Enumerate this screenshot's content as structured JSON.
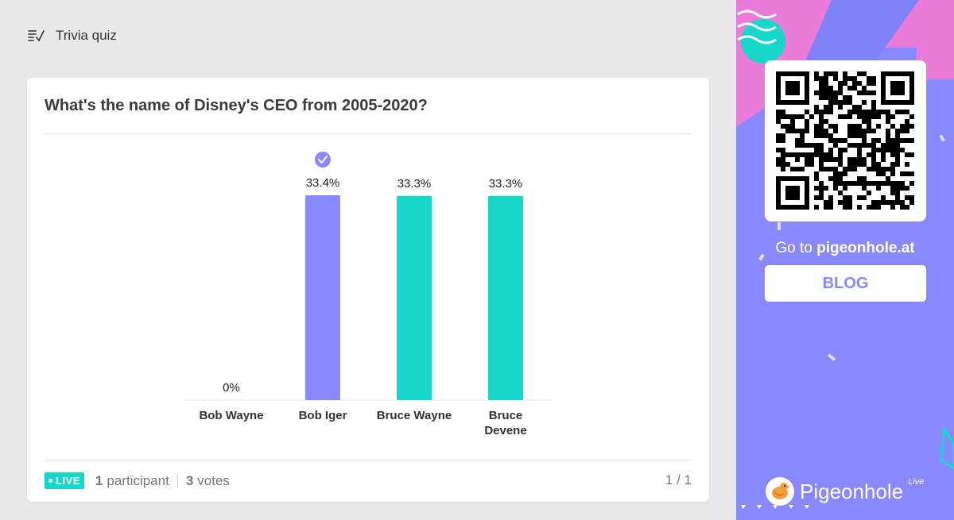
{
  "header": {
    "title": "Trivia quiz",
    "icon": "quiz-list-icon"
  },
  "question": {
    "text": "What's the name of Disney's CEO from 2005-2020?"
  },
  "chart_data": {
    "type": "bar",
    "categories": [
      "Bob Wayne",
      "Bob Iger",
      "Bruce Wayne",
      "Bruce\nDevene"
    ],
    "values": [
      0,
      33.4,
      33.3,
      33.3
    ],
    "labels": [
      "0%",
      "33.4%",
      "33.3%",
      "33.3%"
    ],
    "correct_index": 1,
    "colors": [
      "#17d7c9",
      "#8a88ff",
      "#17d7c9",
      "#17d7c9"
    ],
    "ylim": [
      0,
      33.4
    ]
  },
  "footer": {
    "live": "LIVE",
    "participants_count": "1",
    "participants_label": "participant",
    "votes_count": "3",
    "votes_label": "votes",
    "pager": "1 / 1"
  },
  "sidebar": {
    "goto_prefix": "Go to",
    "goto_domain": "pigeonhole.at",
    "blog_label": "BLOG",
    "brand": "Pigeonhole",
    "brand_sup": "Live",
    "accent": "#8a88ff",
    "pink": "#e97bd9",
    "teal": "#17d7c9"
  }
}
